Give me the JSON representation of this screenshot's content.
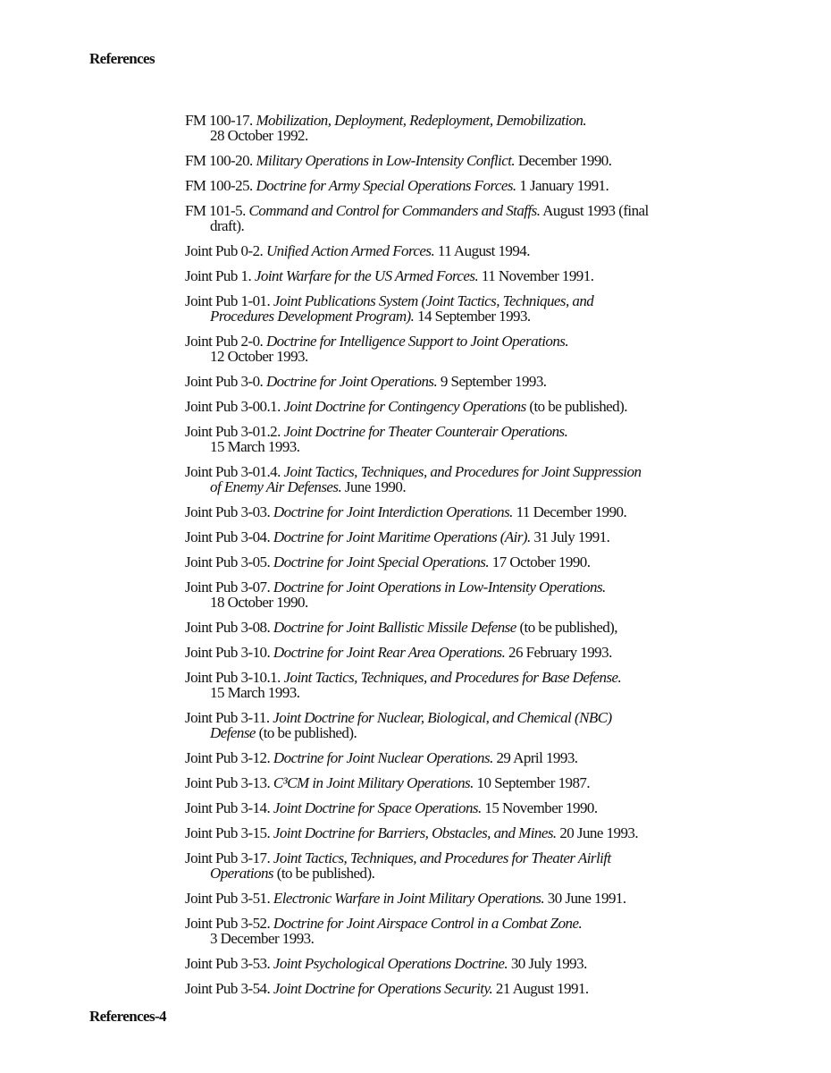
{
  "header": "References",
  "footer": "References-4",
  "entries": [
    {
      "num": "FM 100-17.",
      "t1": "Mobilization, Deployment, Redeployment, Demobilization.",
      "a1": "",
      "t2": "",
      "a2": "28 October 1992."
    },
    {
      "num": "FM 100-20.",
      "t1": "Military Operations in Low-Intensity Conflict.",
      "a1": "December 1990.",
      "t2": "",
      "a2": ""
    },
    {
      "num": "FM 100-25.",
      "t1": "Doctrine for Army Special Operations Forces.",
      "a1": "1 January 1991.",
      "t2": "",
      "a2": ""
    },
    {
      "num": "FM 101-5.",
      "t1": "Command and Control for Commanders and Staffs.",
      "a1": "August 1993 (final",
      "t2": "",
      "a2": "draft)."
    },
    {
      "num": "Joint Pub 0-2.",
      "t1": "Unified Action Armed Forces.",
      "a1": "11 August 1994.",
      "t2": "",
      "a2": ""
    },
    {
      "num": "Joint Pub 1.",
      "t1": "Joint Warfare for the US Armed Forces.",
      "a1": "11 November 1991.",
      "t2": "",
      "a2": ""
    },
    {
      "num": "Joint Pub 1-01.",
      "t1": "Joint Publications System (Joint Tactics, Techniques, and",
      "a1": "",
      "t2": "Procedures Development Program).",
      "a2": "14 September 1993."
    },
    {
      "num": "Joint Pub 2-0.",
      "t1": "Doctrine for Intelligence Support to Joint Operations.",
      "a1": "",
      "t2": "",
      "a2": "12 October 1993."
    },
    {
      "num": "Joint Pub 3-0.",
      "t1": "Doctrine for Joint Operations.",
      "a1": "9 September 1993.",
      "t2": "",
      "a2": ""
    },
    {
      "num": "Joint Pub 3-00.1.",
      "t1": "Joint Doctrine for Contingency Operations",
      "a1": "(to be published).",
      "t2": "",
      "a2": ""
    },
    {
      "num": "Joint Pub 3-01.2.",
      "t1": "Joint Doctrine for Theater Counterair Operations.",
      "a1": "",
      "t2": "",
      "a2": "15 March 1993."
    },
    {
      "num": "Joint Pub 3-01.4.",
      "t1": "Joint Tactics, Techniques, and Procedures for Joint Suppression",
      "a1": "",
      "t2": "of Enemy Air Defenses.",
      "a2": "June 1990."
    },
    {
      "num": "Joint Pub 3-03.",
      "t1": "Doctrine for Joint Interdiction Operations.",
      "a1": "11 December 1990.",
      "t2": "",
      "a2": ""
    },
    {
      "num": "Joint Pub 3-04.",
      "t1": "Doctrine for Joint Maritime Operations (Air).",
      "a1": "31 July 1991.",
      "t2": "",
      "a2": ""
    },
    {
      "num": "Joint Pub 3-05.",
      "t1": "Doctrine for Joint Special Operations.",
      "a1": "17 October 1990.",
      "t2": "",
      "a2": ""
    },
    {
      "num": "Joint Pub 3-07.",
      "t1": "Doctrine for Joint Operations in Low-Intensity Operations.",
      "a1": "",
      "t2": "",
      "a2": "18 October 1990."
    },
    {
      "num": "Joint Pub 3-08.",
      "t1": "Doctrine for Joint Ballistic Missile Defense",
      "a1": "(to be published),",
      "t2": "",
      "a2": ""
    },
    {
      "num": "Joint Pub 3-10.",
      "t1": "Doctrine for Joint Rear Area Operations.",
      "a1": "26 February 1993.",
      "t2": "",
      "a2": ""
    },
    {
      "num": "Joint Pub 3-10.1.",
      "t1": "Joint Tactics, Techniques, and Procedures for Base Defense.",
      "a1": "",
      "t2": "",
      "a2": "15 March 1993."
    },
    {
      "num": "Joint Pub 3-11.",
      "t1": "Joint Doctrine for Nuclear, Biological, and Chemical (NBC)",
      "a1": "",
      "t2": "Defense",
      "a2": "(to be published)."
    },
    {
      "num": "Joint Pub 3-12.",
      "t1": "Doctrine for Joint Nuclear Operations.",
      "a1": "29 April 1993.",
      "t2": "",
      "a2": ""
    },
    {
      "num": "Joint Pub 3-13.",
      "t1": "C³CM in Joint Military Operations.",
      "a1": "10 September 1987.",
      "t2": "",
      "a2": ""
    },
    {
      "num": "Joint Pub 3-14.",
      "t1": "Joint Doctrine for Space Operations.",
      "a1": "15 November 1990.",
      "t2": "",
      "a2": ""
    },
    {
      "num": "Joint Pub 3-15.",
      "t1": "Joint Doctrine for Barriers, Obstacles, and Mines.",
      "a1": "20 June 1993.",
      "t2": "",
      "a2": ""
    },
    {
      "num": "Joint Pub 3-17.",
      "t1": "Joint Tactics, Techniques, and Procedures for Theater Airlift",
      "a1": "",
      "t2": "Operations",
      "a2": "(to be published)."
    },
    {
      "num": "Joint Pub 3-51.",
      "t1": "Electronic Warfare in Joint Military Operations.",
      "a1": "30 June 1991.",
      "t2": "",
      "a2": ""
    },
    {
      "num": "Joint Pub 3-52.",
      "t1": "Doctrine for Joint Airspace Control in a Combat Zone.",
      "a1": "",
      "t2": "",
      "a2": "3 December 1993."
    },
    {
      "num": "Joint Pub 3-53.",
      "t1": "Joint Psychological Operations Doctrine.",
      "a1": "30 July 1993.",
      "t2": "",
      "a2": ""
    },
    {
      "num": "Joint Pub 3-54.",
      "t1": "Joint Doctrine for Operations Security.",
      "a1": "21 August 1991.",
      "t2": "",
      "a2": ""
    }
  ]
}
